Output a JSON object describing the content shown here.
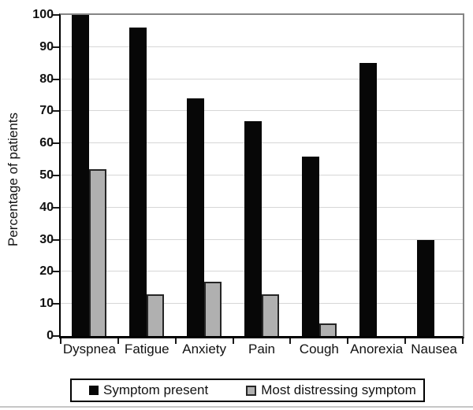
{
  "chart_data": {
    "type": "bar",
    "title": "",
    "xlabel": "",
    "ylabel": "Percentage of patients",
    "categories": [
      "Dyspnea",
      "Fatigue",
      "Anxiety",
      "Pain",
      "Cough",
      "Anorexia",
      "Nausea"
    ],
    "series": [
      {
        "name": "Symptom present",
        "color": "#070707",
        "values": [
          100,
          96,
          74,
          67,
          56,
          85,
          30
        ]
      },
      {
        "name": "Most distressing symptom",
        "color": "#b0b0b0",
        "border_color": "#262626",
        "values": [
          52,
          13,
          17,
          13,
          4,
          0,
          0
        ]
      }
    ],
    "ylim": [
      0,
      100
    ],
    "ytick_step": 10,
    "grid": true,
    "legend_position": "bottom",
    "colors": {
      "axis": "#000000",
      "frame": "#858585",
      "gridline": "#d6d6d6"
    }
  }
}
